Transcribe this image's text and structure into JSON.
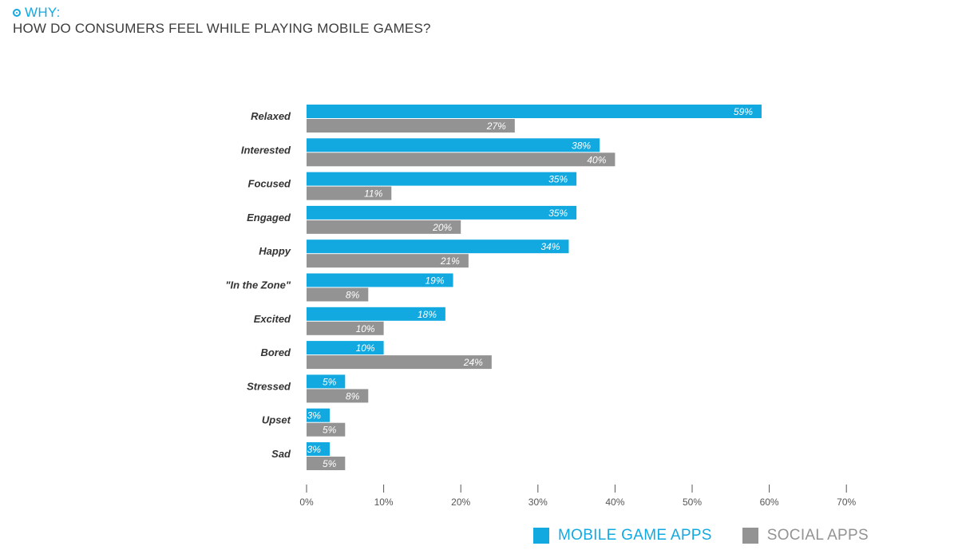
{
  "header": {
    "eyebrow": "WHY:",
    "title": "HOW DO CONSUMERS FEEL WHILE PLAYING MOBILE GAMES?"
  },
  "colors": {
    "mobile": "#12a9e1",
    "social": "#939393",
    "accent": "#12a9e1"
  },
  "icons": {
    "eyebrow": "target-icon"
  },
  "legend": {
    "items": [
      {
        "label": "MOBILE GAME APPS",
        "color": "#12a9e1"
      },
      {
        "label": "SOCIAL APPS",
        "color": "#939393"
      }
    ]
  },
  "chart_data": {
    "type": "bar",
    "orientation": "horizontal",
    "categories": [
      "Relaxed",
      "Interested",
      "Focused",
      "Engaged",
      "Happy",
      "\"In the Zone\"",
      "Excited",
      "Bored",
      "Stressed",
      "Upset",
      "Sad"
    ],
    "series": [
      {
        "name": "MOBILE GAME APPS",
        "values": [
          59,
          38,
          35,
          35,
          34,
          19,
          18,
          10,
          5,
          3,
          3
        ],
        "labels": [
          "59%",
          "38%",
          "35%",
          "35%",
          "34%",
          "19%",
          "18%",
          "10%",
          "5%",
          "3%",
          "3%"
        ]
      },
      {
        "name": "SOCIAL APPS",
        "values": [
          27,
          40,
          11,
          20,
          21,
          8,
          10,
          24,
          8,
          5,
          5
        ],
        "labels": [
          "27%",
          "40%",
          "11%",
          "20%",
          "21%",
          "8%",
          "10%",
          "24%",
          "8%",
          "5%",
          "5%"
        ]
      }
    ],
    "xlim": [
      0,
      70
    ],
    "xticks": [
      0,
      10,
      20,
      30,
      40,
      50,
      60,
      70
    ],
    "xtick_labels": [
      "0%",
      "10%",
      "20%",
      "30%",
      "40%",
      "50%",
      "60%",
      "70%"
    ],
    "grid": false,
    "legend_position": "bottom-right"
  }
}
